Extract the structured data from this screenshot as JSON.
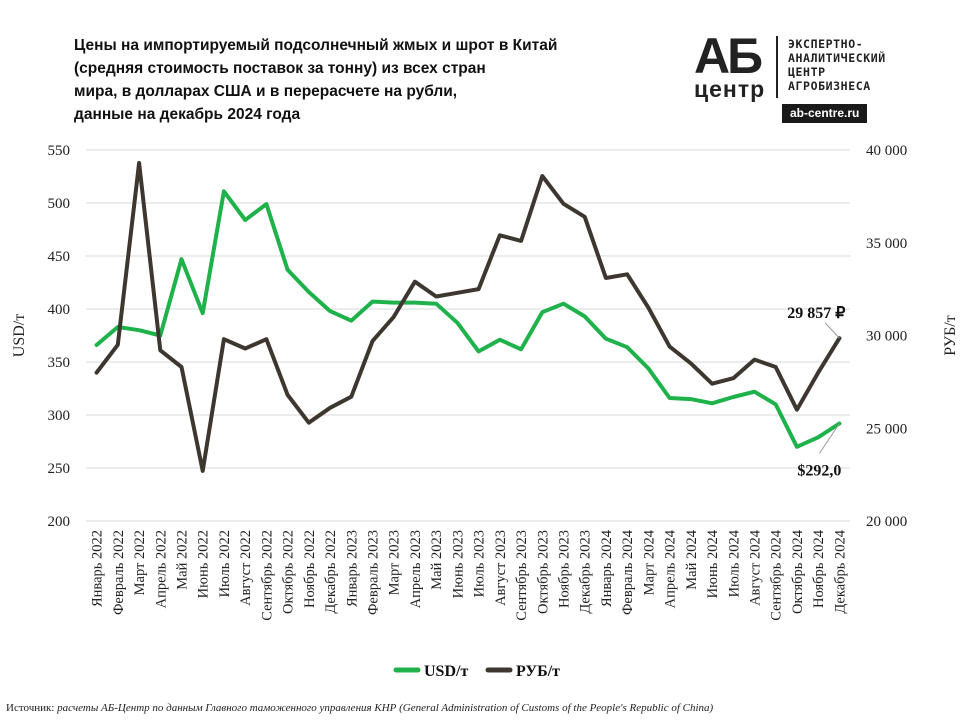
{
  "title_lines": [
    "Цены на импортируемый подсолнечный жмых и шрот в Китай",
    "(средняя стоимость поставок за тонну) из всех стран",
    "мира, в долларах США и в перерасчете на рубли,",
    "данные на декабрь 2024 года"
  ],
  "logo": {
    "brand_top": "АБ",
    "brand_bottom": "центр",
    "text_lines": [
      "ЭКСПЕРТНО-",
      "АНАЛИТИЧЕСКИЙ",
      "ЦЕНТР",
      "АГРОБИЗНЕСА"
    ],
    "site": "ab-centre.ru"
  },
  "source": {
    "label": "Источник:",
    "text": "расчеты АБ-Центр по данным Главного таможенного управления КНР (General Administration of Customs of the People's Republic of China)"
  },
  "chart_data": {
    "type": "line",
    "categories": [
      "Январь 2022",
      "Февраль 2022",
      "Март 2022",
      "Апрель 2022",
      "Май 2022",
      "Июнь 2022",
      "Июль 2022",
      "Август 2022",
      "Сентябрь 2022",
      "Октябрь 2022",
      "Ноябрь 2022",
      "Декабрь 2022",
      "Январь 2023",
      "Февраль 2023",
      "Март 2023",
      "Апрель 2023",
      "Май 2023",
      "Июнь 2023",
      "Июль 2023",
      "Август 2023",
      "Сентябрь 2023",
      "Октябрь 2023",
      "Ноябрь 2023",
      "Декабрь 2023",
      "Январь 2024",
      "Февраль 2024",
      "Март 2024",
      "Апрель 2024",
      "Май 2024",
      "Июнь 2024",
      "Июль 2024",
      "Август 2024",
      "Сентябрь 2024",
      "Октябрь 2024",
      "Ноябрь 2024",
      "Декабрь 2024"
    ],
    "series": [
      {
        "name": "USD/т",
        "axis": "left",
        "color": "#1fb24a",
        "values": [
          366,
          383,
          380,
          375,
          447,
          396,
          511,
          484,
          499,
          437,
          416,
          398,
          389,
          407,
          406,
          406,
          405,
          387,
          360,
          371,
          362,
          397,
          405,
          393,
          372,
          364,
          344,
          316,
          315,
          311,
          317,
          322,
          310,
          270,
          279,
          292
        ]
      },
      {
        "name": "РУБ/т",
        "axis": "right",
        "color": "#3d3730",
        "values": [
          28000,
          29500,
          39300,
          29200,
          28300,
          22700,
          29800,
          29300,
          29800,
          26800,
          25300,
          26100,
          26700,
          29700,
          31000,
          32900,
          32100,
          32300,
          32500,
          35400,
          35100,
          38600,
          37100,
          36400,
          33100,
          33300,
          31500,
          29400,
          28500,
          27400,
          27700,
          28700,
          28300,
          26000,
          28000,
          29857
        ]
      }
    ],
    "ylabel_left": "USD/т",
    "ylabel_right": "РУБ/т",
    "ylim_left": [
      200,
      550
    ],
    "ylim_right": [
      20000,
      40000
    ],
    "yticks_left": [
      "200",
      "250",
      "300",
      "350",
      "400",
      "450",
      "500",
      "550"
    ],
    "yticks_right": [
      "20 000",
      "25 000",
      "30 000",
      "35 000",
      "40 000"
    ],
    "grid": "horizontal",
    "legend": "bottom-center",
    "annotations": [
      {
        "text": "29 857 ₽",
        "series": "РУБ/т",
        "index": 35
      },
      {
        "text": "$292,0",
        "series": "USD/т",
        "index": 35
      }
    ]
  }
}
